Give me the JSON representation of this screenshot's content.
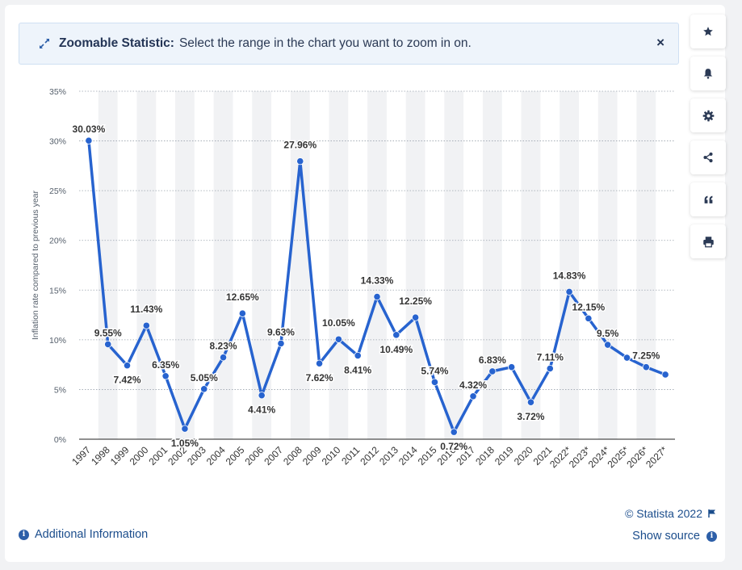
{
  "banner": {
    "title": "Zoomable Statistic:",
    "text": "Select the range in the chart you want to zoom in on.",
    "close_label": "×"
  },
  "toolbar": {
    "items": [
      {
        "name": "favorite",
        "icon": "star-icon"
      },
      {
        "name": "notification",
        "icon": "bell-icon"
      },
      {
        "name": "settings",
        "icon": "gear-icon"
      },
      {
        "name": "share",
        "icon": "share-icon"
      },
      {
        "name": "cite",
        "icon": "quote-icon"
      },
      {
        "name": "print",
        "icon": "print-icon"
      }
    ]
  },
  "footer": {
    "additional_info": "Additional Information",
    "copyright": "© Statista 2022",
    "show_source": "Show source",
    "info_glyph": "i"
  },
  "colors": {
    "line": "#2763cf",
    "link": "#1b4d8c",
    "band": "#f1f2f4"
  },
  "chart_data": {
    "type": "line",
    "title": "",
    "xlabel": "",
    "ylabel": "Inflation rate compared to previous year",
    "ylim": [
      0,
      35
    ],
    "yticks": [
      0,
      5,
      10,
      15,
      20,
      25,
      30,
      35
    ],
    "ytick_labels": [
      "0%",
      "5%",
      "10%",
      "15%",
      "20%",
      "25%",
      "30%",
      "35%"
    ],
    "categories": [
      "1997",
      "1998",
      "1999",
      "2000",
      "2001",
      "2002",
      "2003",
      "2004",
      "2005",
      "2006",
      "2007",
      "2008",
      "2009",
      "2010",
      "2011",
      "2012",
      "2013",
      "2014",
      "2015",
      "2016",
      "2017",
      "2018",
      "2019",
      "2020",
      "2021",
      "2022*",
      "2023*",
      "2024*",
      "2025*",
      "2026*",
      "2027*"
    ],
    "values": [
      30.03,
      9.55,
      7.42,
      11.43,
      6.35,
      1.05,
      5.05,
      8.23,
      12.65,
      4.41,
      9.63,
      27.96,
      7.62,
      10.05,
      8.41,
      14.33,
      10.49,
      12.25,
      5.74,
      0.72,
      4.32,
      6.83,
      7.25,
      3.72,
      7.11,
      14.83,
      12.15,
      9.5,
      8.2,
      7.25,
      6.5
    ],
    "labels": [
      "30.03%",
      "9.55%",
      "7.42%",
      "11.43%",
      "6.35%",
      "1.05%",
      "5.05%",
      "8.23%",
      "12.65%",
      "4.41%",
      "9.63%",
      "27.96%",
      "7.62%",
      "10.05%",
      "8.41%",
      "14.33%",
      "10.49%",
      "12.25%",
      "5.74%",
      "0.72%",
      "4.32%",
      "6.83%",
      "",
      "3.72%",
      "7.11%",
      "14.83%",
      "12.15%",
      "9.5%",
      "",
      "7.25%",
      ""
    ],
    "grid": true,
    "legend": "none"
  }
}
